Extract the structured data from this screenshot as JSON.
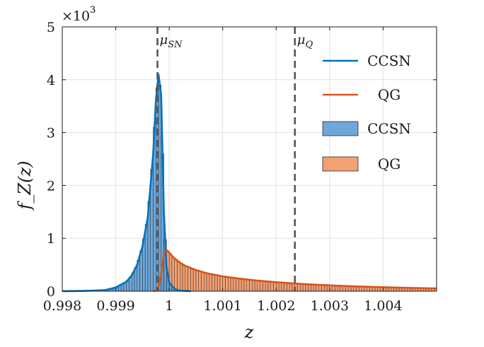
{
  "chart_data": {
    "type": "line",
    "xlabel": "z",
    "ylabel": "f_Z(z)",
    "y_multiplier_base": "×10",
    "y_multiplier_exp": "3",
    "xlim": [
      0.998,
      1.005
    ],
    "ylim": [
      0,
      5000
    ],
    "x_ticks": [
      0.998,
      0.999,
      1.0,
      1.001,
      1.002,
      1.003,
      1.004
    ],
    "x_tick_labels": [
      "0.998",
      "0.999",
      "1",
      "1.001",
      "1.002",
      "1.003",
      "1.004"
    ],
    "y_ticks": [
      0,
      1000,
      2000,
      3000,
      4000,
      5000
    ],
    "y_tick_labels": [
      "0",
      "1",
      "2",
      "3",
      "4",
      "5"
    ],
    "grid": true,
    "legend_position": "top-right",
    "legend": [
      {
        "label": "CCSN",
        "kind": "line",
        "color": "#0072BD"
      },
      {
        "label": "QG",
        "kind": "line",
        "color": "#D95319"
      },
      {
        "label": "CCSN",
        "kind": "patch",
        "color": "#5B9BD5"
      },
      {
        "label": "QG",
        "kind": "patch",
        "color": "#F0945F"
      }
    ],
    "annotations": [
      {
        "label": "μ_SN",
        "base": "μ",
        "sub": "SN",
        "x": 0.99978
      },
      {
        "label": "μ_Q",
        "base": "μ",
        "sub": "Q",
        "x": 1.00235
      }
    ],
    "series": [
      {
        "name": "CCSN",
        "color": "#0072BD",
        "x": [
          0.998,
          0.9984,
          0.9988,
          0.999,
          0.9992,
          0.9993,
          0.9994,
          0.9995,
          0.9996,
          0.9997,
          0.99975,
          0.9998,
          0.99985,
          0.9999,
          0.99995,
          1.0,
          1.0001,
          1.0002,
          1.0004
        ],
        "y": [
          0,
          5,
          20,
          70,
          180,
          300,
          500,
          850,
          1400,
          2600,
          3600,
          4100,
          3700,
          1500,
          450,
          160,
          40,
          10,
          0
        ]
      },
      {
        "name": "QG",
        "color": "#D95319",
        "x": [
          0.9997,
          0.99975,
          0.9998,
          0.99985,
          0.9999,
          0.99995,
          1.0,
          1.00005,
          1.0001,
          1.0002,
          1.0003,
          1.0005,
          1.0007,
          1.001,
          1.0013,
          1.0016,
          1.002,
          1.0025,
          1.003,
          1.0035,
          1.004,
          1.0045,
          1.005
        ],
        "y": [
          0,
          10,
          90,
          330,
          700,
          780,
          730,
          670,
          620,
          540,
          480,
          400,
          340,
          280,
          240,
          205,
          170,
          135,
          110,
          90,
          75,
          62,
          52
        ]
      }
    ],
    "histograms": [
      {
        "name": "CCSN",
        "color": "#5B9BD5",
        "bin_width": 5e-05,
        "range": [
          0.9986,
          1.0004
        ]
      },
      {
        "name": "QG",
        "color": "#F0945F",
        "bin_width": 5e-05,
        "range": [
          0.99975,
          1.005
        ]
      }
    ]
  }
}
